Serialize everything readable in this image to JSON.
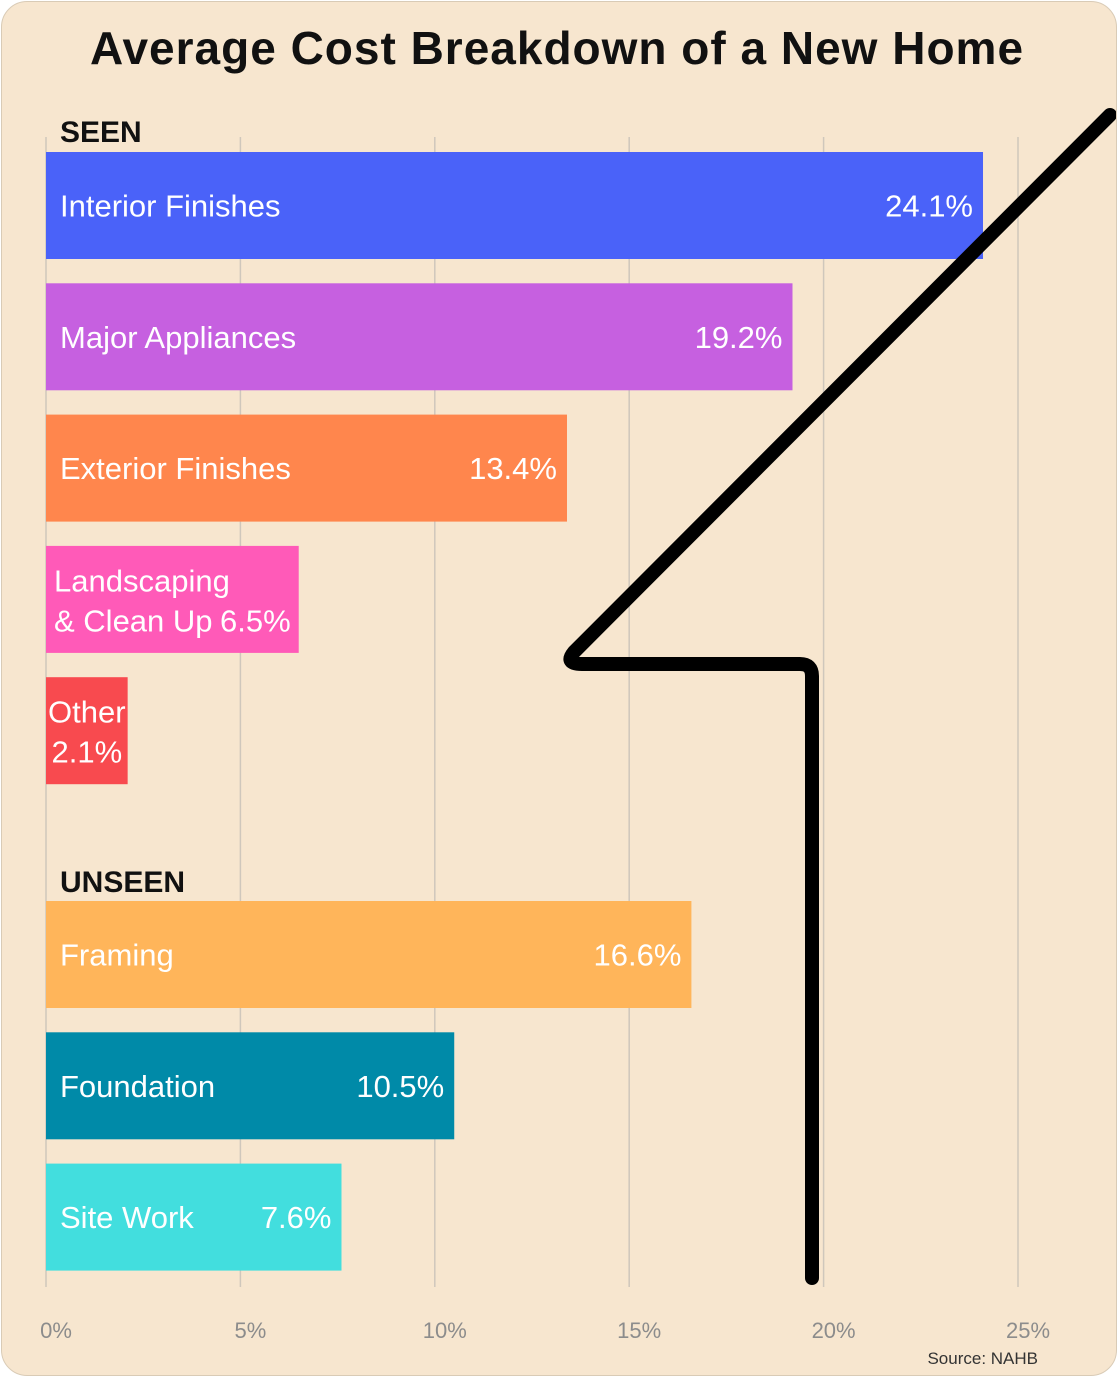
{
  "chart_data": {
    "type": "bar",
    "orientation": "horizontal",
    "title": "Average Cost Breakdown of a New Home",
    "source": "Source: NAHB",
    "xlim": [
      0,
      25
    ],
    "ticks": [
      {
        "value": 0,
        "label": "0%"
      },
      {
        "value": 5,
        "label": "5%"
      },
      {
        "value": 10,
        "label": "10%"
      },
      {
        "value": 15,
        "label": "15%"
      },
      {
        "value": 20,
        "label": "20%"
      },
      {
        "value": 25,
        "label": "25%"
      }
    ],
    "grid": true,
    "groups": [
      {
        "name": "SEEN",
        "bars": [
          {
            "label": "Interior Finishes",
            "value": 24.1,
            "value_label": "24.1%",
            "color": "#4a62f9"
          },
          {
            "label": "Major Appliances",
            "value": 19.2,
            "value_label": "19.2%",
            "color": "#c660e0"
          },
          {
            "label": "Exterior Finishes",
            "value": 13.4,
            "value_label": "13.4%",
            "color": "#ff864d"
          },
          {
            "label": "Landscaping\n& Clean Up",
            "value": 6.5,
            "value_label": "6.5%",
            "color": "#ff5ab8"
          },
          {
            "label": "Other",
            "value": 2.1,
            "value_label": "2.1%",
            "color": "#f84a4f"
          }
        ]
      },
      {
        "name": "UNSEEN",
        "bars": [
          {
            "label": "Framing",
            "value": 16.6,
            "value_label": "16.6%",
            "color": "#ffb55a"
          },
          {
            "label": "Foundation",
            "value": 10.5,
            "value_label": "10.5%",
            "color": "#008aa8"
          },
          {
            "label": "Site Work",
            "value": 7.6,
            "value_label": "7.6%",
            "color": "#42dede"
          }
        ]
      }
    ],
    "annotation": {
      "shape": "lightning-bolt",
      "color": "#000000"
    },
    "background": "#f7e6cf"
  }
}
